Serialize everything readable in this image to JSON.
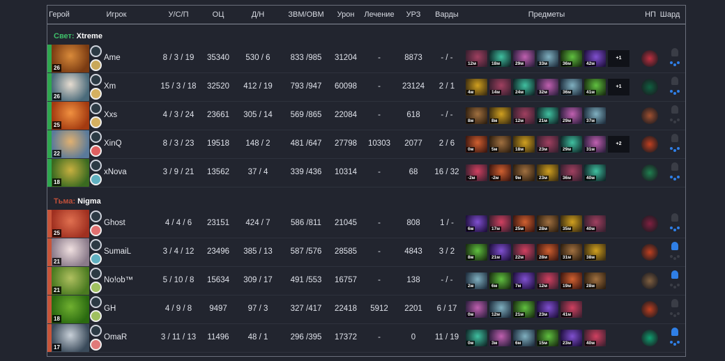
{
  "headers": [
    "Герой",
    "Игрок",
    "У/С/П",
    "ОЦ",
    "Д/Н",
    "ЗВМ/ОВМ",
    "Урон",
    "Лечение",
    "УРЗ",
    "Варды",
    "Предметы",
    "НП",
    "Шард"
  ],
  "colors": {
    "radiant": "#2fa84f",
    "dire": "#c8553a",
    "radiant_label": "#3fbf6a",
    "dire_label": "#c0503a",
    "shard_active": "#2f7fe6"
  },
  "teams": [
    {
      "side": "Свет:",
      "name": "Xtreme",
      "players": [
        {
          "level": 26,
          "name": "Ame",
          "kda": "8 / 3 / 19",
          "nw": "35340",
          "lhdn": "530 / 6",
          "gpmxpm": "833 /985",
          "dmg": "31204",
          "heal": "-",
          "tower": "8873",
          "wards": "- / -",
          "items": [
            "12м",
            "18м",
            "29м",
            "33м",
            "36м",
            "42м"
          ],
          "extra": "+1",
          "scepter": false,
          "shard": true
        },
        {
          "level": 26,
          "name": "Xm",
          "kda": "15 / 3 / 18",
          "nw": "32520",
          "lhdn": "412 / 19",
          "gpmxpm": "793 /947",
          "dmg": "60098",
          "heal": "-",
          "tower": "23124",
          "wards": "2 / 1",
          "items": [
            "4м",
            "14м",
            "24м",
            "32м",
            "36м",
            "41м"
          ],
          "extra": "+1",
          "scepter": false,
          "shard": true
        },
        {
          "level": 25,
          "name": "Xxs",
          "kda": "4 / 3 / 24",
          "nw": "23661",
          "lhdn": "305 / 14",
          "gpmxpm": "569 /865",
          "dmg": "22084",
          "heal": "-",
          "tower": "618",
          "wards": "- / -",
          "items": [
            "8м",
            "8м",
            "12м",
            "21м",
            "29м",
            "37м"
          ],
          "extra": "",
          "scepter": false,
          "shard": false
        },
        {
          "level": 22,
          "name": "XinQ",
          "kda": "8 / 3 / 23",
          "nw": "19518",
          "lhdn": "148 / 2",
          "gpmxpm": "481 /647",
          "dmg": "27798",
          "heal": "10303",
          "tower": "2077",
          "wards": "2 / 6",
          "items": [
            "0м",
            "5м",
            "18м",
            "23м",
            "29м",
            "31м"
          ],
          "extra": "+2",
          "scepter": false,
          "shard": true
        },
        {
          "level": 18,
          "name": "xNova",
          "kda": "3 / 9 / 21",
          "nw": "13562",
          "lhdn": "37 / 4",
          "gpmxpm": "339 /436",
          "dmg": "10314",
          "heal": "-",
          "tower": "68",
          "wards": "16 / 32",
          "items": [
            "-2м",
            "-2м",
            "9м",
            "23м",
            "36м",
            "40м"
          ],
          "extra": "",
          "scepter": false,
          "shard": true
        }
      ]
    },
    {
      "side": "Тьма:",
      "name": "Nigma",
      "players": [
        {
          "level": 25,
          "name": "Ghost",
          "kda": "4 / 4 / 6",
          "nw": "23151",
          "lhdn": "424 / 7",
          "gpmxpm": "586 /811",
          "dmg": "21045",
          "heal": "-",
          "tower": "808",
          "wards": "1 / -",
          "items": [
            "6м",
            "17м",
            "25м",
            "28м",
            "35м",
            "40м"
          ],
          "extra": "",
          "scepter": false,
          "shard": true
        },
        {
          "level": 21,
          "name": "SumaiL",
          "kda": "3 / 4 / 12",
          "nw": "23496",
          "lhdn": "385 / 13",
          "gpmxpm": "587 /576",
          "dmg": "28585",
          "heal": "-",
          "tower": "4843",
          "wards": "3 / 2",
          "items": [
            "8м",
            "21м",
            "22м",
            "28м",
            "31м",
            "38м"
          ],
          "extra": "",
          "scepter": true,
          "shard": false
        },
        {
          "level": 21,
          "name": "No!ob™",
          "kda": "5 / 10 / 8",
          "nw": "15634",
          "lhdn": "309 / 17",
          "gpmxpm": "491 /553",
          "dmg": "16757",
          "heal": "-",
          "tower": "138",
          "wards": "- / -",
          "items": [
            "2м",
            "6м",
            "7м",
            "12м",
            "19м",
            "28м"
          ],
          "extra": "",
          "scepter": true,
          "shard": false
        },
        {
          "level": 18,
          "name": "GH",
          "kda": "4 / 9 / 8",
          "nw": "9497",
          "lhdn": "97 / 3",
          "gpmxpm": "327 /417",
          "dmg": "22418",
          "heal": "5912",
          "tower": "2201",
          "wards": "6 / 17",
          "items": [
            "0м",
            "12м",
            "21м",
            "23м",
            "41м"
          ],
          "extra": "",
          "scepter": false,
          "shard": false
        },
        {
          "level": 17,
          "name": "OmaR",
          "kda": "3 / 11 / 13",
          "nw": "11496",
          "lhdn": "48 / 1",
          "gpmxpm": "296 /395",
          "dmg": "17372",
          "heal": "-",
          "tower": "0",
          "wards": "11 / 19",
          "items": [
            "0м",
            "3м",
            "6м",
            "15м",
            "23м",
            "40м"
          ],
          "extra": "",
          "scepter": true,
          "shard": true
        }
      ]
    }
  ]
}
